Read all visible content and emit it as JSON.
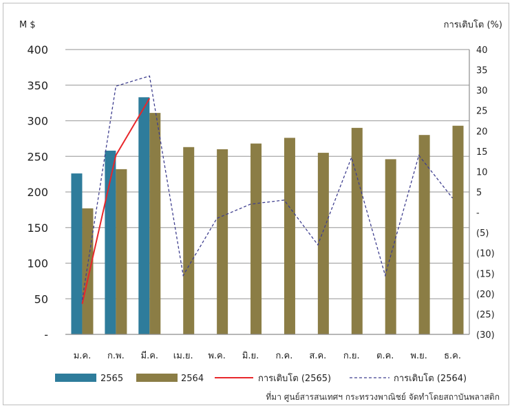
{
  "chart_data": {
    "type": "bar",
    "left_unit": "M $",
    "right_unit": "การเติบโต (%)",
    "categories": [
      "ม.ค.",
      "ก.พ.",
      "มี.ค.",
      "เม.ย.",
      "พ.ค.",
      "มิ.ย.",
      "ก.ค.",
      "ส.ค.",
      "ก.ย.",
      "ต.ค.",
      "พ.ย.",
      "ธ.ค."
    ],
    "left_axis": {
      "min": 0,
      "max": 400,
      "step": 50,
      "tick_labels": [
        "-",
        "50",
        "100",
        "150",
        "200",
        "250",
        "300",
        "350",
        "400"
      ]
    },
    "right_axis": {
      "min": -30,
      "max": 40,
      "step": 5,
      "tick_labels": [
        "(30)",
        "(25)",
        "(20)",
        "(15)",
        "(10)",
        "(5)",
        "-",
        "5",
        "10",
        "15",
        "20",
        "25",
        "30",
        "35",
        "40"
      ]
    },
    "bar_series": [
      {
        "name": "2565",
        "color": "#2E7C9B",
        "values": [
          226,
          258,
          333,
          null,
          null,
          null,
          null,
          null,
          null,
          null,
          null,
          null
        ]
      },
      {
        "name": "2564",
        "color": "#8B7D45",
        "values": [
          177,
          232,
          311,
          263,
          260,
          268,
          276,
          255,
          290,
          246,
          280,
          293
        ]
      }
    ],
    "line_series": [
      {
        "name": "การเติบโต (2565)",
        "color": "#E8262A",
        "style": "solid",
        "values": [
          -22.5,
          14,
          28,
          null,
          null,
          null,
          null,
          null,
          null,
          null,
          null,
          null
        ]
      },
      {
        "name": "การเติบโต (2564)",
        "color": "#3F3F8F",
        "style": "dashed",
        "values": [
          -21.5,
          31,
          33.5,
          -15.5,
          -1.5,
          2,
          3,
          -8,
          13.5,
          -15.5,
          14,
          3.5
        ]
      }
    ],
    "grid": true,
    "legend_position": "bottom"
  },
  "source_note": "ที่มา ศูนย์สารสนเทศฯ กระทรวงพาณิชย์ จัดทำโดยสถาบันพลาสติก"
}
